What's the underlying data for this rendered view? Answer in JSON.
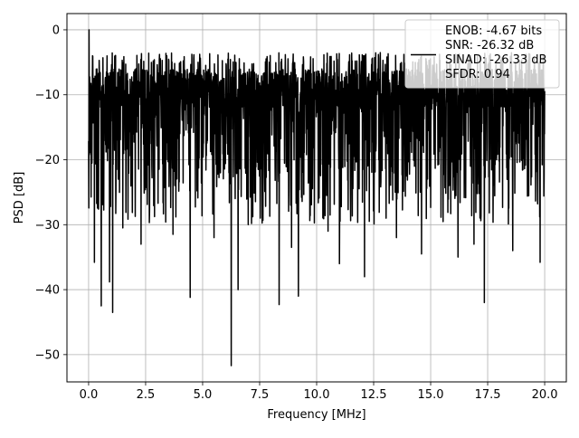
{
  "chart_data": {
    "type": "line",
    "title": "",
    "xlabel": "Frequency [MHz]",
    "ylabel": "PSD [dB]",
    "xlim": [
      -0.95,
      20.95
    ],
    "ylim": [
      -54.2,
      2.5
    ],
    "xticks": [
      0,
      2.5,
      5,
      7.5,
      10,
      12.5,
      15,
      17.5,
      20
    ],
    "xtick_labels": [
      "0.0",
      "2.5",
      "5.0",
      "7.5",
      "10.0",
      "12.5",
      "15.0",
      "17.5",
      "20.0"
    ],
    "yticks": [
      0,
      -10,
      -20,
      -30,
      -40,
      -50
    ],
    "ytick_labels": [
      "0",
      "−10",
      "−20",
      "−30",
      "−40",
      "−50"
    ],
    "grid": true,
    "legend_position": "top-right",
    "series": [
      {
        "name": "ENOB: -4.67 bits\nSNR: -26.32 dB\nSINAD: -26.33 dB\nSFDR: 0.94",
        "color": "#000000",
        "x_range": [
          0,
          20
        ],
        "typical_band_db": [
          -22,
          -6
        ],
        "upper_envelope_db": -3.5,
        "peak": {
          "x": 0.02,
          "y": 0.0
        },
        "notable_minima": [
          {
            "x": 0.25,
            "y": -35.8
          },
          {
            "x": 0.55,
            "y": -42.5
          },
          {
            "x": 0.92,
            "y": -38.8
          },
          {
            "x": 1.05,
            "y": -43.5
          },
          {
            "x": 1.5,
            "y": -30.5
          },
          {
            "x": 2.3,
            "y": -33.0
          },
          {
            "x": 3.7,
            "y": -31.5
          },
          {
            "x": 4.45,
            "y": -41.2
          },
          {
            "x": 5.5,
            "y": -32.0
          },
          {
            "x": 6.25,
            "y": -51.7
          },
          {
            "x": 6.55,
            "y": -40.0
          },
          {
            "x": 7.0,
            "y": -30.0
          },
          {
            "x": 8.35,
            "y": -42.3
          },
          {
            "x": 8.9,
            "y": -33.5
          },
          {
            "x": 9.2,
            "y": -41.0
          },
          {
            "x": 10.5,
            "y": -31.0
          },
          {
            "x": 11.0,
            "y": -36.0
          },
          {
            "x": 12.1,
            "y": -38.0
          },
          {
            "x": 13.5,
            "y": -32.0
          },
          {
            "x": 14.6,
            "y": -34.5
          },
          {
            "x": 16.2,
            "y": -35.0
          },
          {
            "x": 16.9,
            "y": -33.0
          },
          {
            "x": 17.35,
            "y": -42.0
          },
          {
            "x": 18.6,
            "y": -34.0
          },
          {
            "x": 19.8,
            "y": -35.8
          }
        ]
      }
    ]
  }
}
